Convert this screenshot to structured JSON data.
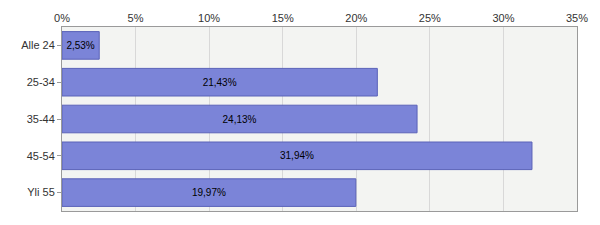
{
  "chart_data": {
    "type": "bar",
    "orientation": "horizontal",
    "categories": [
      "Alle 24",
      "25-34",
      "35-44",
      "45-54",
      "Yli 55"
    ],
    "values": [
      2.53,
      21.43,
      24.13,
      31.94,
      19.97
    ],
    "value_labels": [
      "2,53%",
      "21,43%",
      "24,13%",
      "31,94%",
      "19,97%"
    ],
    "data_labels": true,
    "color": "#7b84d8",
    "xlim": [
      0,
      35
    ],
    "xticks": [
      {
        "value": 0,
        "label": "0%"
      },
      {
        "value": 5,
        "label": "5%"
      },
      {
        "value": 10,
        "label": "10%"
      },
      {
        "value": 15,
        "label": "15%"
      },
      {
        "value": 20,
        "label": "20%"
      },
      {
        "value": 25,
        "label": "25%"
      },
      {
        "value": 30,
        "label": "30%"
      },
      {
        "value": 35,
        "label": "35%"
      }
    ],
    "grid": true
  }
}
